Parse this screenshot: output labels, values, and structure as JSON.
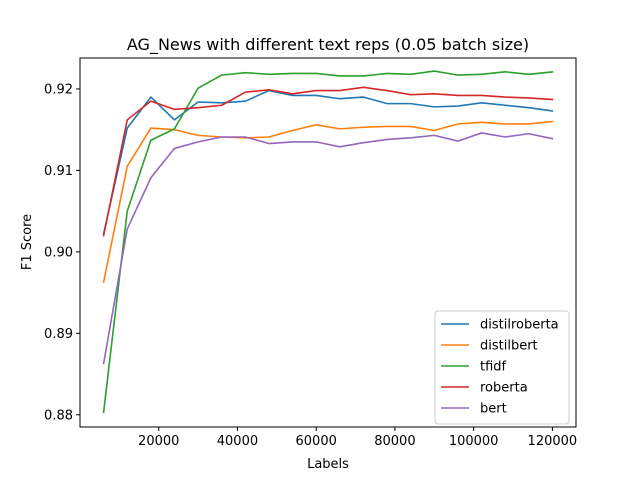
{
  "chart_data": {
    "type": "line",
    "title": "AG_News with different text reps (0.05 batch size)",
    "xlabel": "Labels",
    "ylabel": "F1 Score",
    "xlim": [
      0,
      126000
    ],
    "ylim": [
      0.8785,
      0.9238
    ],
    "xticks": [
      20000,
      40000,
      60000,
      80000,
      100000,
      120000
    ],
    "xtick_labels": [
      "20000",
      "40000",
      "60000",
      "80000",
      "100000",
      "120000"
    ],
    "yticks": [
      0.88,
      0.89,
      0.9,
      0.91,
      0.92
    ],
    "ytick_labels": [
      "0.88",
      "0.89",
      "0.90",
      "0.91",
      "0.92"
    ],
    "grid": false,
    "legend_position": "lower-right",
    "x": [
      6000,
      12000,
      18000,
      24000,
      30000,
      36000,
      42000,
      48000,
      54000,
      60000,
      66000,
      72000,
      78000,
      84000,
      90000,
      96000,
      102000,
      108000,
      114000,
      120000
    ],
    "series": [
      {
        "name": "distilroberta",
        "color": "#1f77b4",
        "values": [
          0.9022,
          0.9152,
          0.919,
          0.9162,
          0.9184,
          0.9183,
          0.9185,
          0.9198,
          0.9192,
          0.9192,
          0.9188,
          0.919,
          0.9182,
          0.9182,
          0.9178,
          0.9179,
          0.9183,
          0.918,
          0.9177,
          0.9173
        ]
      },
      {
        "name": "distilbert",
        "color": "#ff7f0e",
        "values": [
          0.8963,
          0.9105,
          0.9152,
          0.915,
          0.9143,
          0.9141,
          0.914,
          0.9141,
          0.9149,
          0.9156,
          0.9151,
          0.9153,
          0.9154,
          0.9154,
          0.9149,
          0.9157,
          0.9159,
          0.9157,
          0.9157,
          0.916
        ]
      },
      {
        "name": "tfidf",
        "color": "#2ca02c",
        "values": [
          0.8803,
          0.905,
          0.9137,
          0.9151,
          0.9201,
          0.9217,
          0.922,
          0.9218,
          0.9219,
          0.9219,
          0.9216,
          0.9216,
          0.9219,
          0.9218,
          0.9222,
          0.9217,
          0.9218,
          0.9221,
          0.9218,
          0.9221
        ]
      },
      {
        "name": "roberta",
        "color": "#d62728",
        "values": [
          0.902,
          0.9162,
          0.9185,
          0.9175,
          0.9177,
          0.918,
          0.9196,
          0.9199,
          0.9194,
          0.9198,
          0.9198,
          0.9202,
          0.9198,
          0.9193,
          0.9194,
          0.9192,
          0.9192,
          0.919,
          0.9189,
          0.9187
        ]
      },
      {
        "name": "bert",
        "color": "#9467bd",
        "values": [
          0.8863,
          0.9028,
          0.9091,
          0.9127,
          0.9135,
          0.9141,
          0.9141,
          0.9133,
          0.9135,
          0.9135,
          0.9129,
          0.9134,
          0.9138,
          0.914,
          0.9143,
          0.9136,
          0.9146,
          0.9141,
          0.9145,
          0.9139
        ]
      }
    ]
  }
}
